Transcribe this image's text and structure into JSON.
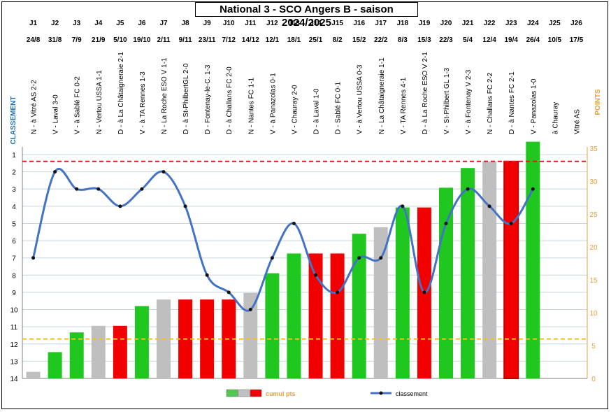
{
  "chart_data": {
    "type": "bar",
    "title": "National 3 - SCO Angers B - saison 2024/2025",
    "left_axis_title": "CLASSEMENT",
    "right_axis_title": "POINTS",
    "left_axis": {
      "min": 1,
      "max": 14,
      "reversed": true,
      "ticks": [
        "1",
        "2",
        "3",
        "4",
        "5",
        "6",
        "7",
        "8",
        "9",
        "10",
        "11",
        "12",
        "13",
        "14"
      ]
    },
    "right_axis": {
      "min": 0,
      "max": 35,
      "ticks": [
        "0",
        "5",
        "10",
        "15",
        "20",
        "25",
        "30",
        "35"
      ]
    },
    "grid": true,
    "reference_lines": [
      {
        "axis": "points",
        "value": 33,
        "color": "#e02020"
      },
      {
        "axis": "points",
        "value": 6,
        "color": "#f0c020"
      }
    ],
    "rounds": [
      {
        "round": "J1",
        "date": "24/8",
        "match": "N - à Vitré AS 2-2",
        "points": 1,
        "result": "draw",
        "rank": 7
      },
      {
        "round": "J2",
        "date": "31/8",
        "match": "V - Laval 3-0",
        "points": 4,
        "result": "win",
        "rank": 2
      },
      {
        "round": "J3",
        "date": "7/9",
        "match": "V - à Sablé FC 0-2",
        "points": 7,
        "result": "win",
        "rank": 3
      },
      {
        "round": "J4",
        "date": "21/9",
        "match": "N - Vertou USSA 1-1",
        "points": 8,
        "result": "draw",
        "rank": 3
      },
      {
        "round": "J5",
        "date": "5/10",
        "match": "D - à La Châtaigneraie 2-1",
        "points": 8,
        "result": "loss",
        "rank": 4
      },
      {
        "round": "J6",
        "date": "19/10",
        "match": "V - à TA Rennes 1-3",
        "points": 11,
        "result": "win",
        "rank": 3
      },
      {
        "round": "J7",
        "date": "2/11",
        "match": "N - La Roche ESO V 1-1",
        "points": 12,
        "result": "draw",
        "rank": 2
      },
      {
        "round": "J8",
        "date": "9/11",
        "match": "D - à St-PhilbertGL 2-0",
        "points": 12,
        "result": "loss",
        "rank": 4
      },
      {
        "round": "J9",
        "date": "23/11",
        "match": "D - Fontenay-le-C. 1-3",
        "points": 12,
        "result": "loss",
        "rank": 8
      },
      {
        "round": "J10",
        "date": "7/12",
        "match": "D - à Challans FC 2-0",
        "points": 12,
        "result": "loss",
        "rank": 9
      },
      {
        "round": "J11",
        "date": "14/12",
        "match": "N - Nantes FC 1-1",
        "points": 13,
        "result": "draw",
        "rank": 10
      },
      {
        "round": "J12",
        "date": "12/1",
        "match": "V - à Panazolas 0-1",
        "points": 16,
        "result": "win",
        "rank": 7
      },
      {
        "round": "J13",
        "date": "18/1",
        "match": "V - Chauray  2-0",
        "points": 19,
        "result": "win",
        "rank": 5
      },
      {
        "round": "J14",
        "date": "25/1",
        "match": "D - à Laval 1-0",
        "points": 19,
        "result": "loss",
        "rank": 8
      },
      {
        "round": "J15",
        "date": "8/2",
        "match": "D - Sablé FC 0-1",
        "points": 19,
        "result": "loss",
        "rank": 9
      },
      {
        "round": "J16",
        "date": "15/2",
        "match": "V - à Vertou USSA 0-3",
        "points": 22,
        "result": "win",
        "rank": 7
      },
      {
        "round": "J17",
        "date": "22/2",
        "match": "N - La Châtaigneraie 1-1",
        "points": 23,
        "result": "draw",
        "rank": 7
      },
      {
        "round": "J18",
        "date": "8/3",
        "match": "V - TA Rennes 4-1",
        "points": 26,
        "result": "win",
        "rank": 4
      },
      {
        "round": "J19",
        "date": "15/3",
        "match": "D - à La Roche ESO V 2-1",
        "points": 26,
        "result": "loss",
        "rank": 9
      },
      {
        "round": "J20",
        "date": "22/3",
        "match": "V - St-Philbert GL  1-3",
        "points": 29,
        "result": "win",
        "rank": 5
      },
      {
        "round": "J21",
        "date": "5/4",
        "match": "V - à Fontenay V 2-3",
        "points": 32,
        "result": "win",
        "rank": 3
      },
      {
        "round": "J22",
        "date": "12/4",
        "match": "N - Challans FC 2-2",
        "points": 33,
        "result": "draw",
        "rank": 4
      },
      {
        "round": "J23",
        "date": "19/4",
        "match": "D - à Nantes FC 2-1",
        "points": 33,
        "result": "loss",
        "rank": 5
      },
      {
        "round": "J24",
        "date": "26/4",
        "match": "V - Panazolas 1-0",
        "points": 36,
        "result": "win",
        "rank": 3
      },
      {
        "round": "J25",
        "date": "10/5",
        "match": "à Chauray",
        "points": null,
        "result": null,
        "rank": null
      },
      {
        "round": "J26",
        "date": "17/5",
        "match": "Vitré AS",
        "points": null,
        "result": null,
        "rank": null
      }
    ],
    "legend": [
      {
        "label": "cumul pts",
        "swatches": [
          "#4ec94e",
          "#c0c0c0",
          "#f00000"
        ],
        "placement": "bottom-center"
      },
      {
        "label": "classement",
        "color": "#4472c4",
        "placement": "bottom-center"
      }
    ],
    "colors": {
      "win": "#1fc71f",
      "draw": "#bfbfbf",
      "loss": "#f20000",
      "line": "#4472c4",
      "axis_left": "#1f6fb0",
      "axis_right": "#e8a13a"
    }
  }
}
